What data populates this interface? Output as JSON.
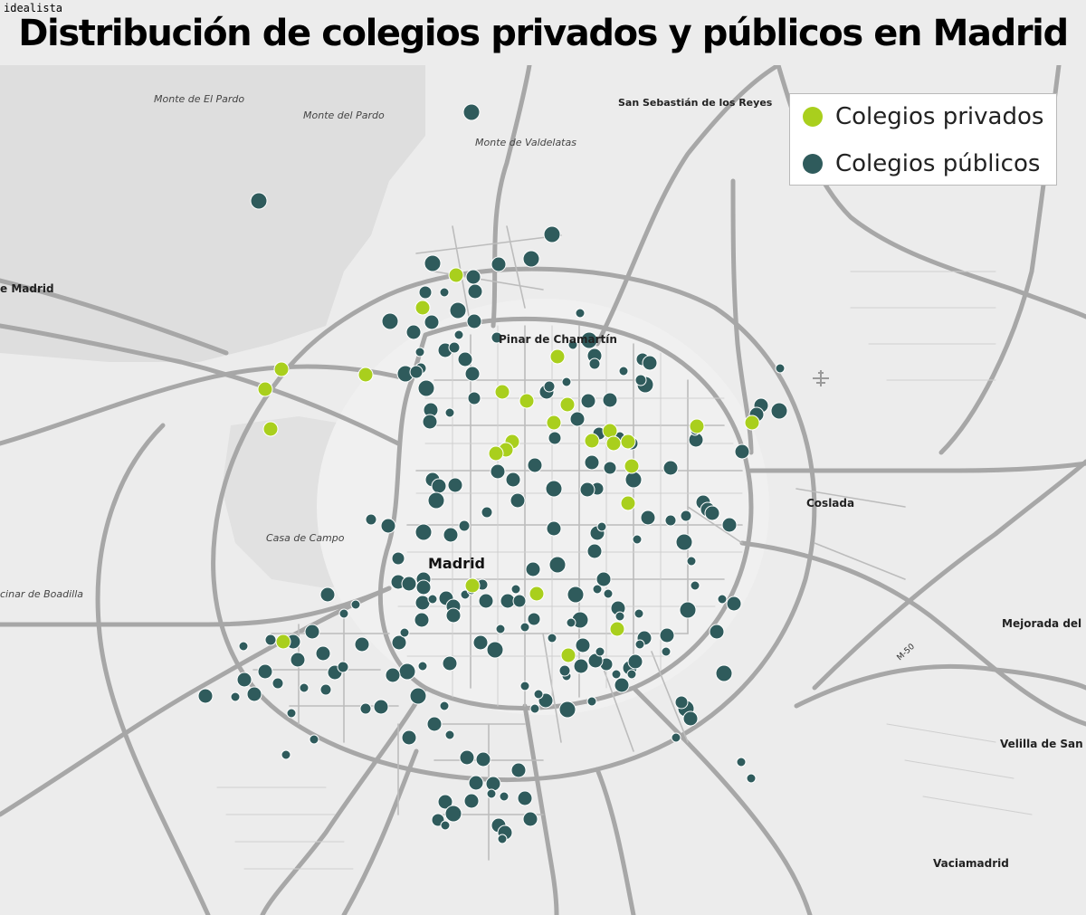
{
  "brand": "idealista",
  "title": "Distribución de colegios privados y públicos en Madrid",
  "colors": {
    "private": "#a9cf1d",
    "public": "#2f5b5c",
    "road": "#a9a9a9",
    "land": "#ececec",
    "park": "#dcdcdc"
  },
  "legend": [
    {
      "label": "Colegios privados",
      "color": "#a9cf1d"
    },
    {
      "label": "Colegios públicos",
      "color": "#2f5b5c"
    }
  ],
  "places": [
    {
      "name": "Monte de El Pardo",
      "style": "italic"
    },
    {
      "name": "Monte del Pardo",
      "style": "italic"
    },
    {
      "name": "San Sebastián de los Reyes",
      "style": "bold"
    },
    {
      "name": "Monte de Valdelatas",
      "style": "italic"
    },
    {
      "name": "e Madrid",
      "style": "bold"
    },
    {
      "name": "Pinar de Chamartín",
      "style": "bold"
    },
    {
      "name": "Coslada",
      "style": "bold"
    },
    {
      "name": "Casa de Campo",
      "style": "italic"
    },
    {
      "name": "Madrid",
      "style": "city"
    },
    {
      "name": "cinar de Boadilla",
      "style": "italic"
    },
    {
      "name": "Mejorada del Ca",
      "style": "bold"
    },
    {
      "name": "M-50",
      "style": "road"
    },
    {
      "name": "Velilla de San An",
      "style": "bold"
    },
    {
      "name": "Vaciamadrid",
      "style": "bold"
    }
  ],
  "icons": {
    "airport": "airplane-icon"
  }
}
